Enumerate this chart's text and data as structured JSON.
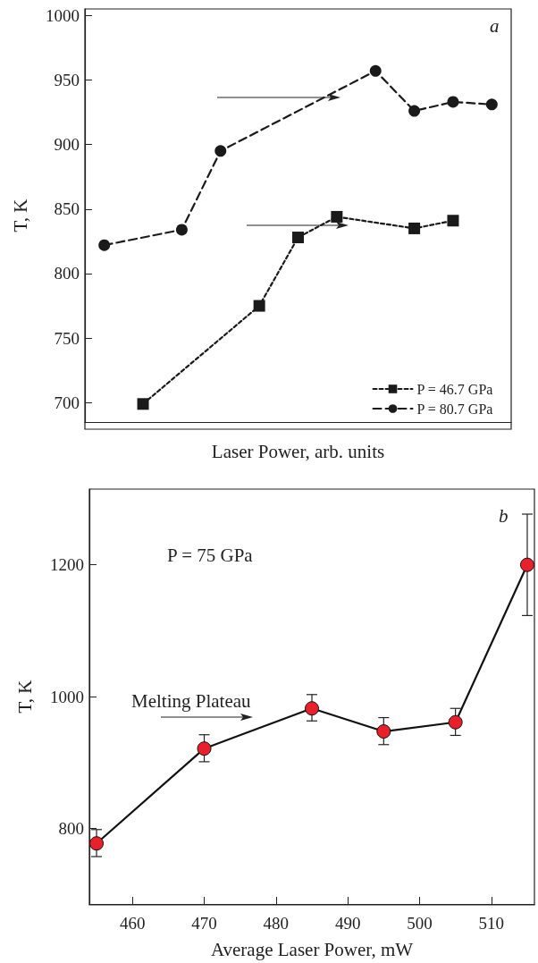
{
  "chart_data": [
    {
      "type": "line",
      "xlabel": "Laser Power, arb. units",
      "ylabel": "T, K",
      "categories": [
        null,
        null,
        null,
        null,
        null,
        null,
        null,
        null,
        null,
        null,
        null
      ],
      "series": [
        {
          "name": "P = 46.7 GPa",
          "color": "#1a1a1a",
          "marker": "square",
          "line_style": "dotted",
          "values": [
            null,
            699,
            null,
            null,
            775,
            828,
            844,
            null,
            835,
            841,
            null
          ]
        },
        {
          "name": "P = 80.7 GPa",
          "color": "#1a1a1a",
          "marker": "circle",
          "line_style": "dashed",
          "values": [
            822,
            null,
            834,
            895,
            null,
            null,
            null,
            957,
            926,
            933,
            931
          ]
        }
      ],
      "ylim": [
        685,
        1005
      ],
      "yticks": [
        700,
        750,
        800,
        850,
        900,
        950,
        1000
      ],
      "tick_labels": "y",
      "legend": "bottom right",
      "grid": false,
      "annotations": [
        "a"
      ]
    },
    {
      "type": "line",
      "xlabel": "Average Laser Power, mW",
      "ylabel": "T, K",
      "x": [
        455,
        470,
        485,
        495,
        505,
        515
      ],
      "series": [
        {
          "color": "#e8202a",
          "marker": "circle",
          "line_style": "solid",
          "values": [
            777,
            921,
            982,
            947,
            961,
            1200
          ],
          "errors": [
            [
              757,
              798
            ],
            [
              901,
              942
            ],
            [
              963,
              1003
            ],
            [
              927,
              968
            ],
            [
              941,
              982
            ],
            [
              1123,
              1277
            ]
          ]
        }
      ],
      "xlim": [
        454,
        516
      ],
      "xticks": [
        460,
        470,
        480,
        490,
        500,
        510
      ],
      "ylim": [
        685,
        1315
      ],
      "yticks": [
        800,
        1000,
        1200
      ],
      "legend": false,
      "grid": false,
      "annotations": [
        "b",
        "P = 75 GPa",
        "Melting Plateau"
      ]
    }
  ]
}
